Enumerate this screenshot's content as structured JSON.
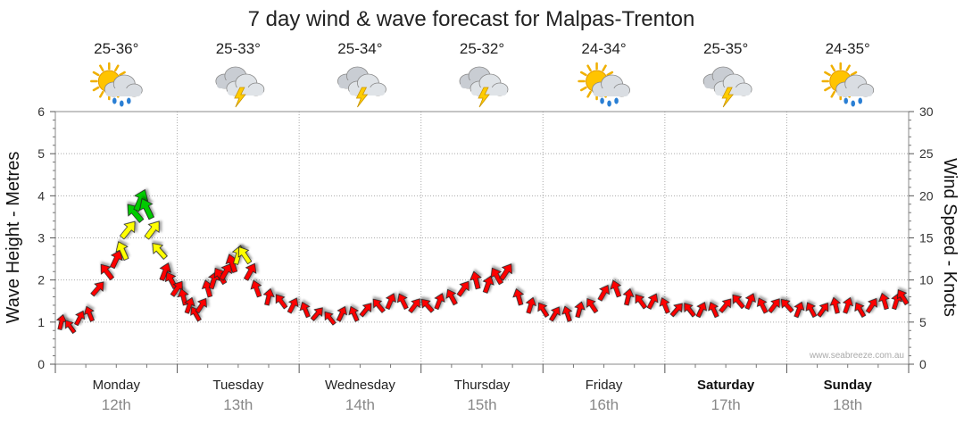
{
  "chart_data": {
    "type": "line",
    "title": "7 day wind & wave forecast for Malpas-Trenton",
    "ylabel_left": "Wave Height - Metres",
    "ylabel_right": "Wind Speed - Knots",
    "ylim_left": [
      0,
      6
    ],
    "ylim_right": [
      0,
      30
    ],
    "yticks_left": [
      "0",
      "1",
      "2",
      "3",
      "4",
      "5",
      "6"
    ],
    "yticks_right": [
      "0",
      "5",
      "10",
      "15",
      "20",
      "25",
      "30"
    ],
    "grid": true,
    "credit": "www.seabreeze.com.au",
    "days": [
      {
        "name": "Monday",
        "date": "12th",
        "temp": "25-36°",
        "icon": "sun-cloud-rain-icon",
        "bold": false
      },
      {
        "name": "Tuesday",
        "date": "13th",
        "temp": "25-33°",
        "icon": "storm-cloud-icon",
        "bold": false
      },
      {
        "name": "Wednesday",
        "date": "14th",
        "temp": "25-34°",
        "icon": "storm-cloud-icon",
        "bold": false
      },
      {
        "name": "Thursday",
        "date": "15th",
        "temp": "25-32°",
        "icon": "storm-cloud-icon",
        "bold": false
      },
      {
        "name": "Friday",
        "date": "16th",
        "temp": "24-34°",
        "icon": "sun-cloud-rain-icon",
        "bold": false
      },
      {
        "name": "Saturday",
        "date": "17th",
        "temp": "25-35°",
        "icon": "storm-cloud-icon",
        "bold": true
      },
      {
        "name": "Sunday",
        "date": "18th",
        "temp": "24-35°",
        "icon": "sun-cloud-rain-icon",
        "bold": true
      }
    ],
    "wind_colors": {
      "low": "#ff0000",
      "mid": "#ffff00",
      "high": "#00cc00"
    },
    "series": [
      {
        "unit": "knots",
        "x_unit": "days",
        "points": [
          [
            0.05,
            5
          ],
          [
            0.12,
            4.5
          ],
          [
            0.2,
            5.5
          ],
          [
            0.28,
            6
          ],
          [
            0.35,
            9
          ],
          [
            0.42,
            11
          ],
          [
            0.5,
            12.5
          ],
          [
            0.55,
            13.5
          ],
          [
            0.6,
            16
          ],
          [
            0.65,
            18
          ],
          [
            0.7,
            19.5
          ],
          [
            0.75,
            18.5
          ],
          [
            0.8,
            16
          ],
          [
            0.85,
            13.5
          ],
          [
            0.9,
            11
          ],
          [
            0.95,
            10
          ],
          [
            1.0,
            9
          ],
          [
            1.05,
            8
          ],
          [
            1.1,
            7
          ],
          [
            1.15,
            6
          ],
          [
            1.2,
            7
          ],
          [
            1.25,
            9
          ],
          [
            1.3,
            10
          ],
          [
            1.35,
            10.5
          ],
          [
            1.4,
            11
          ],
          [
            1.45,
            12
          ],
          [
            1.5,
            13
          ],
          [
            1.55,
            13
          ],
          [
            1.6,
            11
          ],
          [
            1.65,
            9
          ],
          [
            1.75,
            8
          ],
          [
            1.85,
            7.5
          ],
          [
            1.95,
            7
          ],
          [
            2.05,
            6.5
          ],
          [
            2.15,
            6
          ],
          [
            2.25,
            5.5
          ],
          [
            2.35,
            6
          ],
          [
            2.45,
            6
          ],
          [
            2.55,
            6.5
          ],
          [
            2.65,
            7
          ],
          [
            2.75,
            7.5
          ],
          [
            2.85,
            7.5
          ],
          [
            2.95,
            7
          ],
          [
            3.05,
            7
          ],
          [
            3.15,
            7.5
          ],
          [
            3.25,
            8
          ],
          [
            3.35,
            9
          ],
          [
            3.45,
            10
          ],
          [
            3.55,
            9.5
          ],
          [
            3.62,
            10.5
          ],
          [
            3.7,
            11
          ],
          [
            3.8,
            8
          ],
          [
            3.9,
            7
          ],
          [
            4.0,
            6.5
          ],
          [
            4.1,
            6
          ],
          [
            4.2,
            6
          ],
          [
            4.3,
            6.5
          ],
          [
            4.4,
            7
          ],
          [
            4.5,
            8.5
          ],
          [
            4.6,
            9
          ],
          [
            4.7,
            8
          ],
          [
            4.8,
            7.5
          ],
          [
            4.9,
            7.5
          ],
          [
            5.0,
            7
          ],
          [
            5.1,
            6.5
          ],
          [
            5.2,
            6.5
          ],
          [
            5.3,
            6.5
          ],
          [
            5.4,
            6.5
          ],
          [
            5.5,
            7
          ],
          [
            5.6,
            7.5
          ],
          [
            5.7,
            7.5
          ],
          [
            5.8,
            7
          ],
          [
            5.9,
            7
          ],
          [
            6.0,
            7
          ],
          [
            6.1,
            6.5
          ],
          [
            6.2,
            6.5
          ],
          [
            6.3,
            6.5
          ],
          [
            6.4,
            7
          ],
          [
            6.5,
            7
          ],
          [
            6.6,
            6.5
          ],
          [
            6.7,
            7
          ],
          [
            6.8,
            7.5
          ],
          [
            6.9,
            7.5
          ],
          [
            6.95,
            8
          ]
        ]
      }
    ]
  }
}
